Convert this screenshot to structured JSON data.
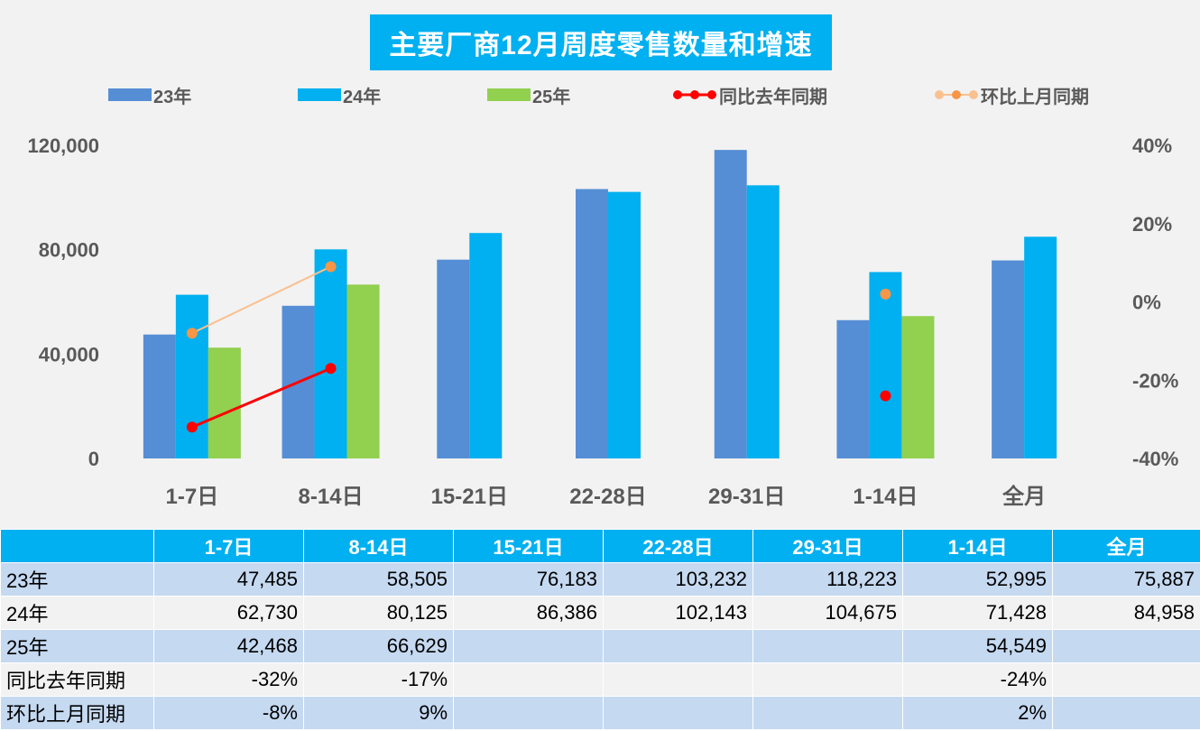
{
  "chart_data": {
    "type": "bar",
    "title": "主要厂商12月周度零售数量和增速",
    "categories": [
      "1-7日",
      "8-14日",
      "15-21日",
      "22-28日",
      "29-31日",
      "1-14日",
      "全月"
    ],
    "series": [
      {
        "name": "23年",
        "type": "bar",
        "axis": "left",
        "color": "#558ed5",
        "values": [
          47485,
          58505,
          76183,
          103232,
          118223,
          52995,
          75887
        ]
      },
      {
        "name": "24年",
        "type": "bar",
        "axis": "left",
        "color": "#00b0f0",
        "values": [
          62730,
          80125,
          86386,
          102143,
          104675,
          71428,
          84958
        ]
      },
      {
        "name": "25年",
        "type": "bar",
        "axis": "left",
        "color": "#92d050",
        "values": [
          42468,
          66629,
          null,
          null,
          null,
          54549,
          null
        ]
      },
      {
        "name": "同比去年同期",
        "type": "line",
        "axis": "right",
        "color": "#ff0000",
        "values": [
          -32,
          -17,
          null,
          null,
          null,
          -24,
          null
        ]
      },
      {
        "name": "环比上月同期",
        "type": "line",
        "axis": "right",
        "color": "#fac090",
        "marker_color": "#f79646",
        "values": [
          -8,
          9,
          null,
          null,
          null,
          2,
          null
        ]
      }
    ],
    "y_left": {
      "ylim": [
        0,
        120000
      ],
      "ticks": [
        0,
        40000,
        80000,
        120000
      ],
      "tick_labels": [
        "0",
        "40,000",
        "80,000",
        "120,000"
      ]
    },
    "y_right": {
      "ylim": [
        -40,
        40
      ],
      "ticks": [
        -40,
        -20,
        0,
        20,
        40
      ],
      "tick_labels": [
        "-40%",
        "-20%",
        "0%",
        "20%",
        "40%"
      ]
    },
    "grid": false,
    "legend_position": "top"
  },
  "table": {
    "headers": [
      "",
      "1-7日",
      "8-14日",
      "15-21日",
      "22-28日",
      "29-31日",
      "1-14日",
      "全月"
    ],
    "rows": [
      [
        "23年",
        "47,485",
        "58,505",
        "76,183",
        "103,232",
        "118,223",
        "52,995",
        "75,887"
      ],
      [
        "24年",
        "62,730",
        "80,125",
        "86,386",
        "102,143",
        "104,675",
        "71,428",
        "84,958"
      ],
      [
        "25年",
        "42,468",
        "66,629",
        "",
        "",
        "",
        "54,549",
        ""
      ],
      [
        "同比去年同期",
        "-32%",
        "-17%",
        "",
        "",
        "",
        "-24%",
        ""
      ],
      [
        "环比上月同期",
        "-8%",
        "9%",
        "",
        "",
        "",
        "2%",
        ""
      ]
    ]
  }
}
